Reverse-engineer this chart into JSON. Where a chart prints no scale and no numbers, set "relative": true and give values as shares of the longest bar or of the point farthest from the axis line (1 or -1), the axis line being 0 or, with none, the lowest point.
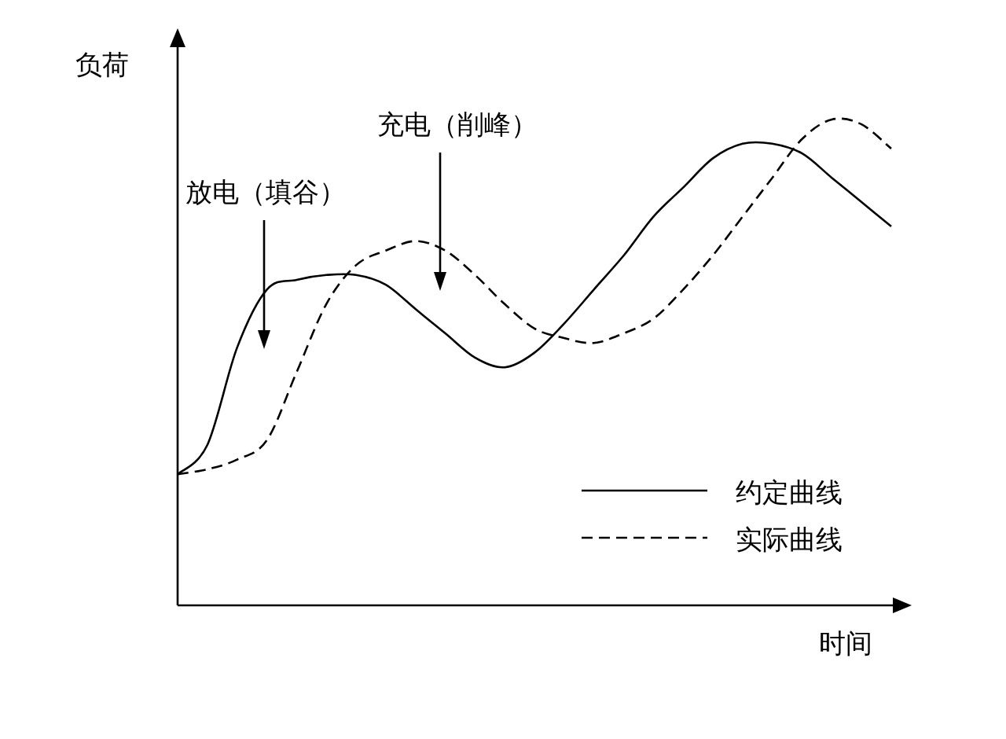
{
  "chart_data": {
    "type": "line",
    "relative": true,
    "xlabel": "时间",
    "ylabel": "负荷",
    "legend": "bottom right",
    "categories": [
      null,
      null,
      null,
      null,
      null,
      null,
      null,
      null,
      null,
      null,
      null,
      null,
      null,
      null,
      null,
      null,
      null,
      null,
      null,
      null,
      null,
      null,
      null,
      null,
      null
    ],
    "series": [
      {
        "name": "约定曲线",
        "color": "#000000",
        "line_style": "solid",
        "values": [
          0.27,
          0.33,
          0.53,
          0.65,
          0.67,
          0.68,
          0.68,
          0.66,
          0.61,
          0.56,
          0.51,
          0.49,
          0.52,
          0.58,
          0.65,
          0.72,
          0.8,
          0.86,
          0.92,
          0.95,
          0.95,
          0.93,
          0.88,
          0.83,
          0.78
        ]
      },
      {
        "name": "实际曲线",
        "color": "#000000",
        "line_style": "dashed",
        "values": [
          0.27,
          0.28,
          0.3,
          0.34,
          0.48,
          0.62,
          0.7,
          0.73,
          0.75,
          0.73,
          0.68,
          0.62,
          0.57,
          0.55,
          0.54,
          0.56,
          0.59,
          0.65,
          0.72,
          0.8,
          0.88,
          0.96,
          1.0,
          0.99,
          0.94
        ]
      }
    ],
    "annotations": [
      "放电（填谷）",
      "充电（削峰）"
    ]
  }
}
